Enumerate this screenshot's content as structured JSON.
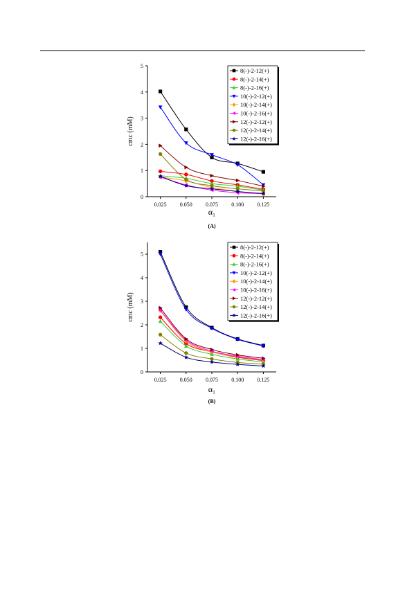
{
  "chart_data": [
    {
      "type": "line",
      "y_label": "cmc (mM)",
      "x_label": "α₁",
      "caption": "(A)",
      "x": [
        0.025,
        0.05,
        0.075,
        0.1,
        0.125
      ],
      "xlim": [
        0.0125,
        0.1375
      ],
      "xticks": [
        0.025,
        {
          "value": 0.05,
          "label": "0.050"
        },
        0.075,
        {
          "value": 0.1,
          "label": "0.100"
        },
        0.125
      ],
      "ylim": [
        0,
        5
      ],
      "yticks": [
        0,
        1,
        2,
        3,
        4,
        5
      ],
      "legend": "top-right",
      "series": [
        {
          "name": "8(-)-2-12(+)",
          "color": "#000000",
          "marker": "square",
          "values": [
            4.02,
            2.57,
            1.5,
            1.27,
            0.95
          ]
        },
        {
          "name": "8(-)-2-14(+)",
          "color": "#ff0000",
          "marker": "circle",
          "values": [
            0.97,
            0.85,
            0.6,
            0.45,
            0.28
          ]
        },
        {
          "name": "8(-)-2-16(+)",
          "color": "#33cc33",
          "marker": "triangle-up",
          "values": [
            0.8,
            0.7,
            0.5,
            0.4,
            0.25
          ]
        },
        {
          "name": "10(-)-2-12(+)",
          "color": "#0000ff",
          "marker": "triangle-down",
          "values": [
            3.42,
            2.05,
            1.6,
            1.22,
            0.45
          ]
        },
        {
          "name": "10(-)-2-14(+)",
          "color": "#ff9900",
          "marker": "diamond",
          "values": [
            0.75,
            0.6,
            0.35,
            0.2,
            0.1
          ]
        },
        {
          "name": "10(-)-2-16(+)",
          "color": "#ff00ff",
          "marker": "triangle-left",
          "values": [
            0.75,
            0.45,
            0.25,
            0.15,
            0.12
          ]
        },
        {
          "name": "12(-)-2-12(+)",
          "color": "#800000",
          "marker": "triangle-right",
          "values": [
            1.95,
            1.12,
            0.8,
            0.62,
            0.4
          ]
        },
        {
          "name": "12(-)-2-14(+)",
          "color": "#808000",
          "marker": "hexagon",
          "values": [
            1.63,
            0.66,
            0.42,
            0.3,
            0.22
          ]
        },
        {
          "name": "12(-)-2-16(+)",
          "color": "#000080",
          "marker": "star",
          "values": [
            0.78,
            0.42,
            0.3,
            0.2,
            0.12
          ]
        }
      ]
    },
    {
      "type": "line",
      "y_label": "cmc (mM)",
      "x_label": "α₁",
      "caption": "(B)",
      "x": [
        0.025,
        0.05,
        0.075,
        0.1,
        0.125
      ],
      "xlim": [
        0.0125,
        0.1375
      ],
      "xticks": [
        0.025,
        {
          "value": 0.05,
          "label": "0.050"
        },
        0.075,
        {
          "value": 0.1,
          "label": "0.100"
        },
        0.125
      ],
      "ylim": [
        0,
        5.5
      ],
      "yticks": [
        0,
        1,
        2,
        3,
        4,
        5
      ],
      "legend": "top-right",
      "series": [
        {
          "name": "8(-)-2-12(+)",
          "color": "#000000",
          "marker": "square",
          "values": [
            5.1,
            2.75,
            1.88,
            1.4,
            1.12
          ]
        },
        {
          "name": "8(-)-2-14(+)",
          "color": "#ff0000",
          "marker": "circle",
          "values": [
            2.32,
            1.2,
            0.85,
            0.62,
            0.48
          ]
        },
        {
          "name": "8(-)-2-16(+)",
          "color": "#33cc33",
          "marker": "triangle-up",
          "values": [
            2.15,
            1.1,
            0.75,
            0.55,
            0.42
          ]
        },
        {
          "name": "10(-)-2-12(+)",
          "color": "#0000ff",
          "marker": "triangle-down",
          "values": [
            5.0,
            2.65,
            1.85,
            1.38,
            1.1
          ]
        },
        {
          "name": "10(-)-2-14(+)",
          "color": "#ff9900",
          "marker": "diamond",
          "values": [
            2.6,
            1.3,
            0.85,
            0.65,
            0.5
          ]
        },
        {
          "name": "10(-)-2-16(+)",
          "color": "#ff00ff",
          "marker": "triangle-left",
          "values": [
            2.62,
            1.35,
            0.88,
            0.67,
            0.52
          ]
        },
        {
          "name": "12(-)-2-12(+)",
          "color": "#800000",
          "marker": "triangle-right",
          "values": [
            2.72,
            1.4,
            0.95,
            0.72,
            0.58
          ]
        },
        {
          "name": "12(-)-2-14(+)",
          "color": "#808000",
          "marker": "hexagon",
          "values": [
            1.58,
            0.8,
            0.55,
            0.4,
            0.33
          ]
        },
        {
          "name": "12(-)-2-16(+)",
          "color": "#000080",
          "marker": "star",
          "values": [
            1.22,
            0.62,
            0.42,
            0.32,
            0.25
          ]
        }
      ]
    }
  ]
}
